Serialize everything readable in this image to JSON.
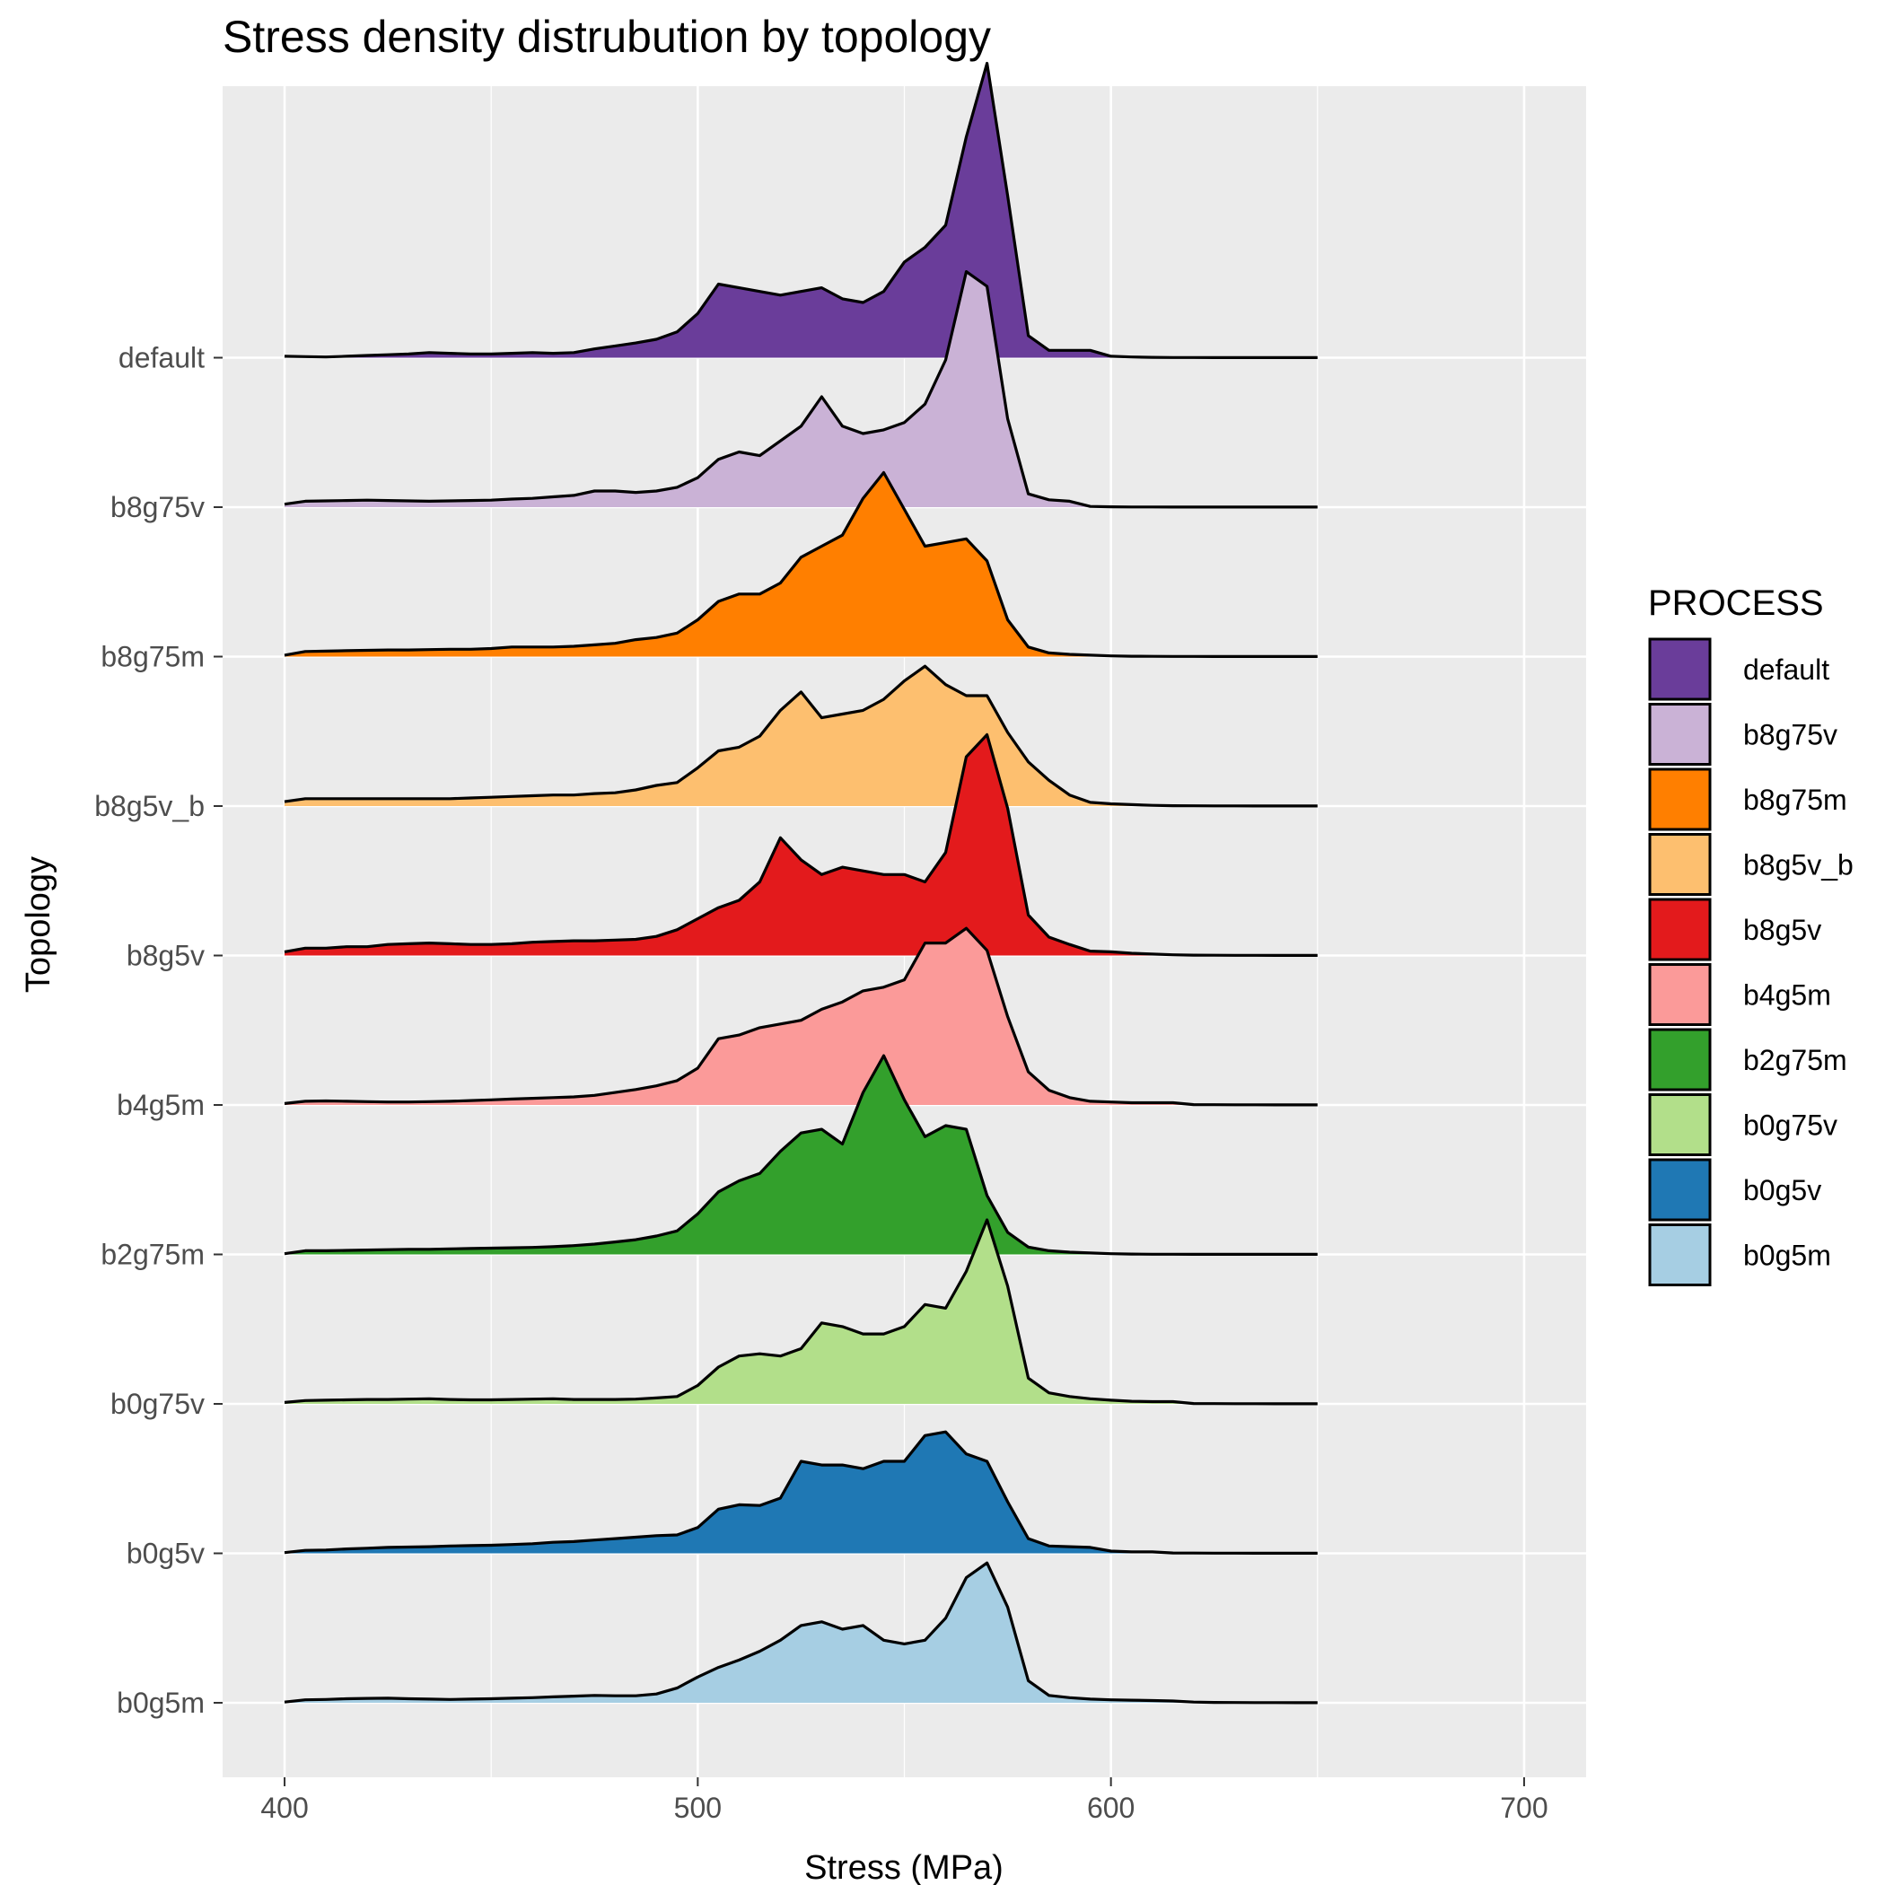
{
  "chart_data": {
    "type": "area",
    "subtype": "ridgeline-density",
    "title": "Stress density distrubution by topology",
    "xlabel": "Stress (MPa)",
    "ylabel": "Topology",
    "xlim": [
      385,
      715
    ],
    "x_ticks": [
      400,
      500,
      600,
      700
    ],
    "grid": true,
    "legend": {
      "title": "PROCESS",
      "placement": "right"
    },
    "x": [
      400,
      405,
      410,
      415,
      420,
      425,
      430,
      435,
      440,
      445,
      450,
      455,
      460,
      465,
      470,
      475,
      480,
      485,
      490,
      495,
      500,
      505,
      510,
      515,
      520,
      525,
      530,
      535,
      540,
      545,
      550,
      555,
      560,
      565,
      570,
      575,
      580,
      585,
      590,
      595,
      600,
      605,
      610,
      615,
      620,
      625,
      630,
      635,
      640,
      645,
      650
    ],
    "series": [
      {
        "name": "b0g5m",
        "color": "#A6CEE3",
        "values": [
          0.1,
          0.4,
          0.45,
          0.55,
          0.6,
          0.62,
          0.55,
          0.5,
          0.45,
          0.5,
          0.55,
          0.62,
          0.7,
          0.8,
          0.9,
          1.0,
          0.95,
          0.95,
          1.2,
          2.0,
          3.5,
          4.8,
          5.8,
          7.0,
          8.5,
          10.5,
          11.0,
          10.0,
          10.5,
          8.5,
          8.0,
          8.5,
          11.5,
          17.0,
          19.0,
          13.0,
          3.0,
          1.0,
          0.7,
          0.5,
          0.4,
          0.35,
          0.3,
          0.25,
          0.1,
          0.05,
          0.04,
          0.03,
          0.02,
          0.01,
          0.01
        ]
      },
      {
        "name": "b0g5v",
        "color": "#1F78B4",
        "values": [
          0.1,
          0.4,
          0.45,
          0.6,
          0.7,
          0.8,
          0.85,
          0.9,
          1.0,
          1.05,
          1.1,
          1.2,
          1.3,
          1.5,
          1.6,
          1.8,
          2.0,
          2.2,
          2.4,
          2.5,
          3.5,
          6.0,
          6.6,
          6.5,
          7.5,
          12.5,
          12.0,
          12.0,
          11.5,
          12.5,
          12.5,
          16.0,
          16.5,
          13.5,
          12.5,
          7.0,
          2.0,
          1.0,
          0.9,
          0.8,
          0.3,
          0.2,
          0.2,
          0.05,
          0.04,
          0.03,
          0.02,
          0.01,
          0.01,
          0.01,
          0.01
        ]
      },
      {
        "name": "b0g75v",
        "color": "#B2DF8A",
        "values": [
          0.2,
          0.45,
          0.5,
          0.55,
          0.6,
          0.6,
          0.65,
          0.7,
          0.6,
          0.55,
          0.55,
          0.6,
          0.65,
          0.7,
          0.6,
          0.6,
          0.6,
          0.65,
          0.8,
          1.0,
          2.5,
          5.0,
          6.5,
          6.8,
          6.5,
          7.5,
          11.0,
          10.5,
          9.5,
          9.5,
          10.5,
          13.5,
          13.0,
          18.0,
          25.0,
          16.0,
          3.5,
          1.5,
          1.0,
          0.7,
          0.5,
          0.35,
          0.3,
          0.3,
          0.05,
          0.04,
          0.03,
          0.02,
          0.01,
          0.01,
          0.01
        ]
      },
      {
        "name": "b2g75m",
        "color": "#33A02C",
        "values": [
          0.1,
          0.5,
          0.5,
          0.55,
          0.6,
          0.65,
          0.7,
          0.7,
          0.75,
          0.8,
          0.85,
          0.9,
          0.95,
          1.05,
          1.2,
          1.4,
          1.7,
          2.0,
          2.5,
          3.2,
          5.5,
          8.5,
          10.0,
          11.0,
          14.0,
          16.5,
          17.0,
          15.0,
          22.0,
          27.0,
          21.0,
          16.0,
          17.5,
          17.0,
          8.0,
          3.0,
          1.0,
          0.5,
          0.3,
          0.2,
          0.1,
          0.05,
          0.03,
          0.02,
          0.01,
          0.01,
          0.01,
          0.01,
          0.01,
          0.01,
          0.01
        ]
      },
      {
        "name": "b4g5m",
        "color": "#FB9A99",
        "values": [
          0.2,
          0.5,
          0.55,
          0.5,
          0.45,
          0.4,
          0.4,
          0.45,
          0.5,
          0.6,
          0.7,
          0.8,
          0.9,
          1.0,
          1.1,
          1.3,
          1.7,
          2.1,
          2.6,
          3.3,
          5.0,
          9.0,
          9.5,
          10.5,
          11.0,
          11.5,
          13.0,
          14.0,
          15.5,
          16.0,
          17.0,
          22.0,
          22.0,
          24.0,
          21.0,
          12.0,
          4.5,
          2.0,
          1.0,
          0.5,
          0.4,
          0.3,
          0.3,
          0.3,
          0.05,
          0.04,
          0.03,
          0.02,
          0.01,
          0.01,
          0.01
        ]
      },
      {
        "name": "b8g5v",
        "color": "#E31A1C",
        "values": [
          0.5,
          1.0,
          1.0,
          1.2,
          1.2,
          1.5,
          1.6,
          1.7,
          1.6,
          1.5,
          1.5,
          1.6,
          1.8,
          1.9,
          2.0,
          2.0,
          2.1,
          2.2,
          2.6,
          3.5,
          5.0,
          6.5,
          7.5,
          10.0,
          16.0,
          13.0,
          11.0,
          12.0,
          11.5,
          11.0,
          11.0,
          10.0,
          14.0,
          27.0,
          30.0,
          20.0,
          5.5,
          2.5,
          1.5,
          0.6,
          0.5,
          0.3,
          0.2,
          0.1,
          0.05,
          0.04,
          0.03,
          0.02,
          0.01,
          0.01,
          0.01
        ]
      },
      {
        "name": "b8g5v_b",
        "color": "#FDBF6F",
        "values": [
          0.6,
          1.0,
          1.0,
          1.0,
          1.0,
          1.0,
          1.0,
          1.0,
          1.0,
          1.1,
          1.2,
          1.3,
          1.4,
          1.5,
          1.5,
          1.7,
          1.8,
          2.2,
          2.8,
          3.2,
          5.2,
          7.5,
          8.0,
          9.5,
          13.0,
          15.5,
          12.0,
          12.5,
          13.0,
          14.5,
          17.0,
          19.0,
          16.5,
          15.0,
          15.0,
          10.0,
          6.0,
          3.5,
          1.5,
          0.5,
          0.3,
          0.2,
          0.1,
          0.05,
          0.04,
          0.03,
          0.02,
          0.01,
          0.01,
          0.01,
          0.01
        ]
      },
      {
        "name": "b8g75m",
        "color": "#FF7F00",
        "values": [
          0.2,
          0.7,
          0.75,
          0.8,
          0.85,
          0.9,
          0.9,
          0.95,
          1.0,
          1.0,
          1.1,
          1.3,
          1.3,
          1.3,
          1.4,
          1.6,
          1.8,
          2.3,
          2.6,
          3.2,
          5.0,
          7.5,
          8.5,
          8.5,
          10.0,
          13.5,
          15.0,
          16.5,
          21.5,
          25.0,
          20.0,
          15.0,
          15.5,
          16.0,
          13.0,
          5.0,
          1.3,
          0.5,
          0.3,
          0.2,
          0.1,
          0.05,
          0.04,
          0.03,
          0.02,
          0.01,
          0.01,
          0.01,
          0.01,
          0.01,
          0.01
        ]
      },
      {
        "name": "b8g75v",
        "color": "#CAB2D6",
        "values": [
          0.4,
          0.8,
          0.85,
          0.9,
          0.95,
          0.9,
          0.85,
          0.8,
          0.85,
          0.9,
          0.95,
          1.1,
          1.2,
          1.4,
          1.6,
          2.2,
          2.2,
          2.0,
          2.2,
          2.7,
          4.0,
          6.5,
          7.5,
          7.0,
          9.0,
          11.0,
          15.0,
          11.0,
          10.0,
          10.5,
          11.5,
          14.0,
          20.0,
          32.0,
          30.0,
          12.0,
          1.8,
          1.0,
          0.8,
          0.1,
          0.05,
          0.03,
          0.02,
          0.01,
          0.01,
          0.01,
          0.01,
          0.01,
          0.01,
          0.01,
          0.01
        ]
      },
      {
        "name": "default",
        "color": "#6A3D9A",
        "values": [
          0.2,
          0.15,
          0.1,
          0.2,
          0.3,
          0.4,
          0.5,
          0.7,
          0.6,
          0.5,
          0.5,
          0.6,
          0.7,
          0.6,
          0.7,
          1.2,
          1.6,
          2.0,
          2.5,
          3.5,
          6.0,
          10.0,
          9.5,
          9.0,
          8.5,
          9.0,
          9.5,
          8.0,
          7.5,
          9.0,
          13.0,
          15.0,
          18.0,
          30.0,
          40.0,
          22.0,
          3.0,
          1.0,
          1.0,
          1.0,
          0.2,
          0.1,
          0.05,
          0.03,
          0.02,
          0.01,
          0.01,
          0.01,
          0.01,
          0.01,
          0.01
        ]
      }
    ]
  }
}
